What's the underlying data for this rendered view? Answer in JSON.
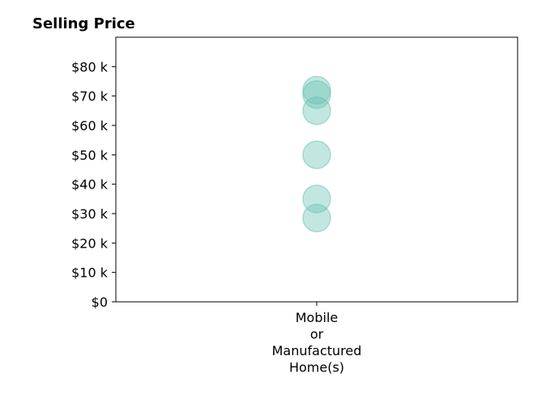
{
  "chart_data": {
    "type": "scatter",
    "title": "Selling Price",
    "xlabel": "",
    "ylabel": "",
    "categories": [
      "Mobile\nor\nManufactured\nHome(s)"
    ],
    "points": [
      {
        "category": 0,
        "value": 72000
      },
      {
        "category": 0,
        "value": 70500
      },
      {
        "category": 0,
        "value": 65000
      },
      {
        "category": 0,
        "value": 50000
      },
      {
        "category": 0,
        "value": 35000
      },
      {
        "category": 0,
        "value": 28500
      }
    ],
    "ylim": [
      0,
      90000
    ],
    "yticks": [
      0,
      10000,
      20000,
      30000,
      40000,
      50000,
      60000,
      70000,
      80000
    ],
    "ytick_labels": [
      "$0",
      "$10 k",
      "$20 k",
      "$30 k",
      "$40 k",
      "$50 k",
      "$60 k",
      "$70 k",
      "$80 k"
    ],
    "grid": false,
    "color": "#66c2b5"
  }
}
